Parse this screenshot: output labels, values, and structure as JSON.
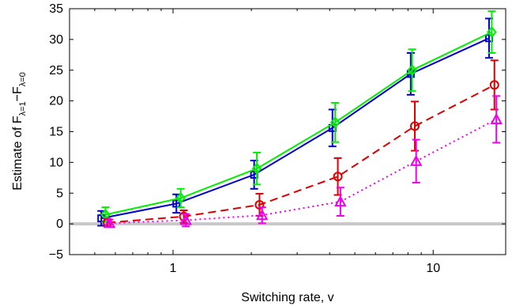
{
  "chart_data": {
    "type": "line",
    "xlabel": "Switching rate, v",
    "ylabel_parts": {
      "prefix": "Estimate of F",
      "sub1": "λ=1",
      "mid": "−F",
      "sub2": "λ=0"
    },
    "xscale": "log",
    "xlim": [
      0.4,
      19
    ],
    "ylim": [
      -5,
      35
    ],
    "x_ticks": [
      1,
      10
    ],
    "x_tick_labels": [
      "1",
      "10"
    ],
    "y_ticks": [
      -5,
      0,
      5,
      10,
      15,
      20,
      25,
      30,
      35
    ],
    "y_tick_labels": [
      "−5",
      "0",
      "5",
      "10",
      "15",
      "20",
      "25",
      "30",
      "35"
    ],
    "grid": false,
    "legend": "none",
    "reference_line": {
      "y": 0,
      "color": "#c8c8c8"
    },
    "series": [
      {
        "color": "#0000cc",
        "line_style": "solid",
        "marker": "square",
        "x": [
          0.53,
          1.03,
          2.05,
          4.1,
          8.2,
          16.4
        ],
        "y": [
          0.9,
          3.3,
          8.0,
          15.6,
          24.4,
          30.2
        ],
        "err": [
          1.2,
          1.5,
          2.3,
          3.0,
          3.4,
          3.2
        ]
      },
      {
        "color": "#00ee00",
        "line_style": "solid",
        "marker": "diamond",
        "x": [
          0.55,
          1.07,
          2.1,
          4.2,
          8.3,
          16.8
        ],
        "y": [
          1.5,
          4.2,
          9.0,
          16.5,
          25.0,
          31.2
        ],
        "err": [
          1.2,
          1.5,
          2.6,
          3.2,
          3.4,
          3.4
        ]
      },
      {
        "color": "#dd0000",
        "line_style": "dashed",
        "marker": "circle",
        "x": [
          0.56,
          1.1,
          2.15,
          4.3,
          8.5,
          17.2
        ],
        "y": [
          0.2,
          1.2,
          3.1,
          7.7,
          15.9,
          22.6
        ],
        "err": [
          0.6,
          1.0,
          1.8,
          3.0,
          4.0,
          4.0
        ]
      },
      {
        "color": "#ee00ee",
        "line_style": "dotted",
        "marker": "triangle",
        "x": [
          0.57,
          1.12,
          2.2,
          4.4,
          8.6,
          17.5
        ],
        "y": [
          0.1,
          0.6,
          1.4,
          3.6,
          10.2,
          17.0
        ],
        "err": [
          0.6,
          1.0,
          1.3,
          2.3,
          3.5,
          3.8
        ]
      }
    ]
  }
}
